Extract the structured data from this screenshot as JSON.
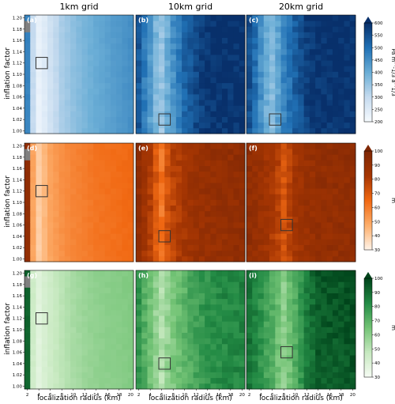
{
  "figure": {
    "column_titles": [
      "1km grid",
      "10km grid",
      "20km grid"
    ],
    "ylabel": "inflation factor",
    "xlabel": "localization radius (km)",
    "y_ticks": [
      "1.00",
      "1.02",
      "1.04",
      "1.06",
      "1.08",
      "1.10",
      "1.12",
      "1.14",
      "1.16",
      "1.18",
      "1.20"
    ],
    "x_ticks": [
      "2",
      "4",
      "6",
      "8",
      "10",
      "12",
      "14",
      "16",
      "18",
      "20"
    ],
    "panel_labels": [
      "(a)",
      "(b)",
      "(c)",
      "(d)",
      "(e)",
      "(f)",
      "(g)",
      "(h)",
      "(i)"
    ],
    "colorbars": [
      {
        "unit": "Pa m^-1/3 a^1/3",
        "ticks": [
          "200",
          "250",
          "300",
          "350",
          "400",
          "450",
          "500",
          "550",
          "600"
        ],
        "min": 200,
        "max": 600,
        "colors": [
          "#f7fbff",
          "#c6dbef",
          "#6baed6",
          "#2171b5",
          "#08306b"
        ]
      },
      {
        "unit": "m",
        "ticks": [
          "30",
          "40",
          "50",
          "60",
          "70",
          "80",
          "90",
          "100"
        ],
        "min": 30,
        "max": 100,
        "colors": [
          "#fff5eb",
          "#fdae6b",
          "#f16913",
          "#a63603",
          "#7f2704"
        ]
      },
      {
        "unit": "m",
        "ticks": [
          "30",
          "40",
          "50",
          "60",
          "70",
          "80",
          "90",
          "100"
        ],
        "min": 30,
        "max": 100,
        "colors": [
          "#f7fcf5",
          "#c7e9c0",
          "#74c476",
          "#238b45",
          "#00441b"
        ]
      }
    ]
  },
  "chart_data": {
    "type": "heatmap",
    "x": [
      2,
      3,
      4,
      5,
      6,
      7,
      8,
      9,
      10,
      11,
      12,
      13,
      14,
      15,
      16,
      17,
      18,
      19,
      20
    ],
    "y": [
      1.0,
      1.01,
      1.02,
      1.03,
      1.04,
      1.05,
      1.06,
      1.07,
      1.08,
      1.09,
      1.1,
      1.11,
      1.12,
      1.13,
      1.14,
      1.15,
      1.16,
      1.17,
      1.18,
      1.19,
      1.2
    ],
    "xlabel": "localization radius (km)",
    "ylabel": "inflation factor",
    "panels": [
      {
        "label": "(a)",
        "column": "1km grid",
        "colorbar": 0,
        "best": {
          "x": 4,
          "y": 1.12
        },
        "missing_color": "#808080",
        "missing": [
          {
            "x": 2,
            "y": 1.18
          },
          {
            "x": 2,
            "y": 1.19
          }
        ],
        "profile": [
          {
            "x": 2,
            "v": 470
          },
          {
            "x": 3,
            "v": 300
          },
          {
            "x": 4,
            "v": 230
          },
          {
            "x": 5,
            "v": 250
          },
          {
            "x": 6,
            "v": 280
          },
          {
            "x": 7,
            "v": 305
          },
          {
            "x": 8,
            "v": 330
          },
          {
            "x": 10,
            "v": 360
          },
          {
            "x": 12,
            "v": 385
          },
          {
            "x": 14,
            "v": 405
          },
          {
            "x": 16,
            "v": 420
          },
          {
            "x": 18,
            "v": 435
          },
          {
            "x": 20,
            "v": 450
          }
        ]
      },
      {
        "label": "(b)",
        "column": "10km grid",
        "colorbar": 0,
        "best": {
          "x": 6,
          "y": 1.02
        },
        "profile": [
          {
            "x": 2,
            "v": 540
          },
          {
            "x": 3,
            "v": 480
          },
          {
            "x": 4,
            "v": 430
          },
          {
            "x": 5,
            "v": 380
          },
          {
            "x": 6,
            "v": 350
          },
          {
            "x": 7,
            "v": 400
          },
          {
            "x": 8,
            "v": 450
          },
          {
            "x": 10,
            "v": 520
          },
          {
            "x": 12,
            "v": 565
          },
          {
            "x": 14,
            "v": 590
          },
          {
            "x": 20,
            "v": 600
          }
        ]
      },
      {
        "label": "(c)",
        "column": "20km grid",
        "colorbar": 0,
        "best": {
          "x": 6,
          "y": 1.02
        },
        "profile": [
          {
            "x": 2,
            "v": 550
          },
          {
            "x": 3,
            "v": 500
          },
          {
            "x": 4,
            "v": 450
          },
          {
            "x": 5,
            "v": 400
          },
          {
            "x": 6,
            "v": 370
          },
          {
            "x": 7,
            "v": 420
          },
          {
            "x": 8,
            "v": 470
          },
          {
            "x": 10,
            "v": 530
          },
          {
            "x": 12,
            "v": 575
          },
          {
            "x": 14,
            "v": 595
          },
          {
            "x": 20,
            "v": 600
          }
        ]
      },
      {
        "label": "(d)",
        "column": "1km grid",
        "colorbar": 1,
        "best": {
          "x": 4,
          "y": 1.12
        },
        "missing_color": "#808080",
        "missing": [
          {
            "x": 2,
            "y": 1.18
          },
          {
            "x": 2,
            "y": 1.19
          }
        ],
        "profile": [
          {
            "x": 2,
            "v": 92
          },
          {
            "x": 3,
            "v": 50
          },
          {
            "x": 4,
            "v": 40
          },
          {
            "x": 5,
            "v": 45
          },
          {
            "x": 6,
            "v": 50
          },
          {
            "x": 8,
            "v": 55
          },
          {
            "x": 10,
            "v": 58
          },
          {
            "x": 12,
            "v": 60
          },
          {
            "x": 14,
            "v": 62
          },
          {
            "x": 16,
            "v": 63
          },
          {
            "x": 18,
            "v": 64
          },
          {
            "x": 20,
            "v": 65
          }
        ]
      },
      {
        "label": "(e)",
        "column": "10km grid",
        "colorbar": 1,
        "best": {
          "x": 6,
          "y": 1.04
        },
        "profile": [
          {
            "x": 2,
            "v": 92
          },
          {
            "x": 3,
            "v": 85
          },
          {
            "x": 4,
            "v": 80
          },
          {
            "x": 5,
            "v": 70
          },
          {
            "x": 6,
            "v": 62
          },
          {
            "x": 7,
            "v": 72
          },
          {
            "x": 8,
            "v": 78
          },
          {
            "x": 10,
            "v": 84
          },
          {
            "x": 12,
            "v": 88
          },
          {
            "x": 14,
            "v": 90
          },
          {
            "x": 20,
            "v": 92
          }
        ]
      },
      {
        "label": "(f)",
        "column": "20km grid",
        "colorbar": 1,
        "best": {
          "x": 8,
          "y": 1.06
        },
        "profile": [
          {
            "x": 2,
            "v": 92
          },
          {
            "x": 4,
            "v": 88
          },
          {
            "x": 6,
            "v": 82
          },
          {
            "x": 7,
            "v": 78
          },
          {
            "x": 8,
            "v": 72
          },
          {
            "x": 9,
            "v": 78
          },
          {
            "x": 10,
            "v": 84
          },
          {
            "x": 12,
            "v": 88
          },
          {
            "x": 14,
            "v": 91
          },
          {
            "x": 20,
            "v": 92
          }
        ]
      },
      {
        "label": "(g)",
        "column": "1km grid",
        "colorbar": 2,
        "best": {
          "x": 4,
          "y": 1.12
        },
        "missing_color": "#808080",
        "missing": [
          {
            "x": 2,
            "y": 1.18
          },
          {
            "x": 2,
            "y": 1.19
          }
        ],
        "profile": [
          {
            "x": 2,
            "v": 92
          },
          {
            "x": 3,
            "v": 45
          },
          {
            "x": 4,
            "v": 38
          },
          {
            "x": 5,
            "v": 42
          },
          {
            "x": 6,
            "v": 45
          },
          {
            "x": 8,
            "v": 50
          },
          {
            "x": 10,
            "v": 54
          },
          {
            "x": 12,
            "v": 57
          },
          {
            "x": 14,
            "v": 59
          },
          {
            "x": 16,
            "v": 60
          },
          {
            "x": 18,
            "v": 61
          },
          {
            "x": 20,
            "v": 62
          }
        ]
      },
      {
        "label": "(h)",
        "column": "10km grid",
        "colorbar": 2,
        "best": {
          "x": 6,
          "y": 1.04
        },
        "profile": [
          {
            "x": 2,
            "v": 80
          },
          {
            "x": 3,
            "v": 72
          },
          {
            "x": 4,
            "v": 66
          },
          {
            "x": 5,
            "v": 58
          },
          {
            "x": 6,
            "v": 52
          },
          {
            "x": 7,
            "v": 58
          },
          {
            "x": 8,
            "v": 64
          },
          {
            "x": 10,
            "v": 70
          },
          {
            "x": 12,
            "v": 76
          },
          {
            "x": 14,
            "v": 80
          },
          {
            "x": 16,
            "v": 82
          },
          {
            "x": 20,
            "v": 84
          }
        ]
      },
      {
        "label": "(i)",
        "column": "20km grid",
        "colorbar": 2,
        "best": {
          "x": 8,
          "y": 1.06
        },
        "profile": [
          {
            "x": 2,
            "v": 88
          },
          {
            "x": 4,
            "v": 80
          },
          {
            "x": 6,
            "v": 72
          },
          {
            "x": 7,
            "v": 66
          },
          {
            "x": 8,
            "v": 60
          },
          {
            "x": 9,
            "v": 66
          },
          {
            "x": 10,
            "v": 72
          },
          {
            "x": 12,
            "v": 86
          },
          {
            "x": 14,
            "v": 94
          },
          {
            "x": 20,
            "v": 96
          }
        ]
      }
    ]
  }
}
